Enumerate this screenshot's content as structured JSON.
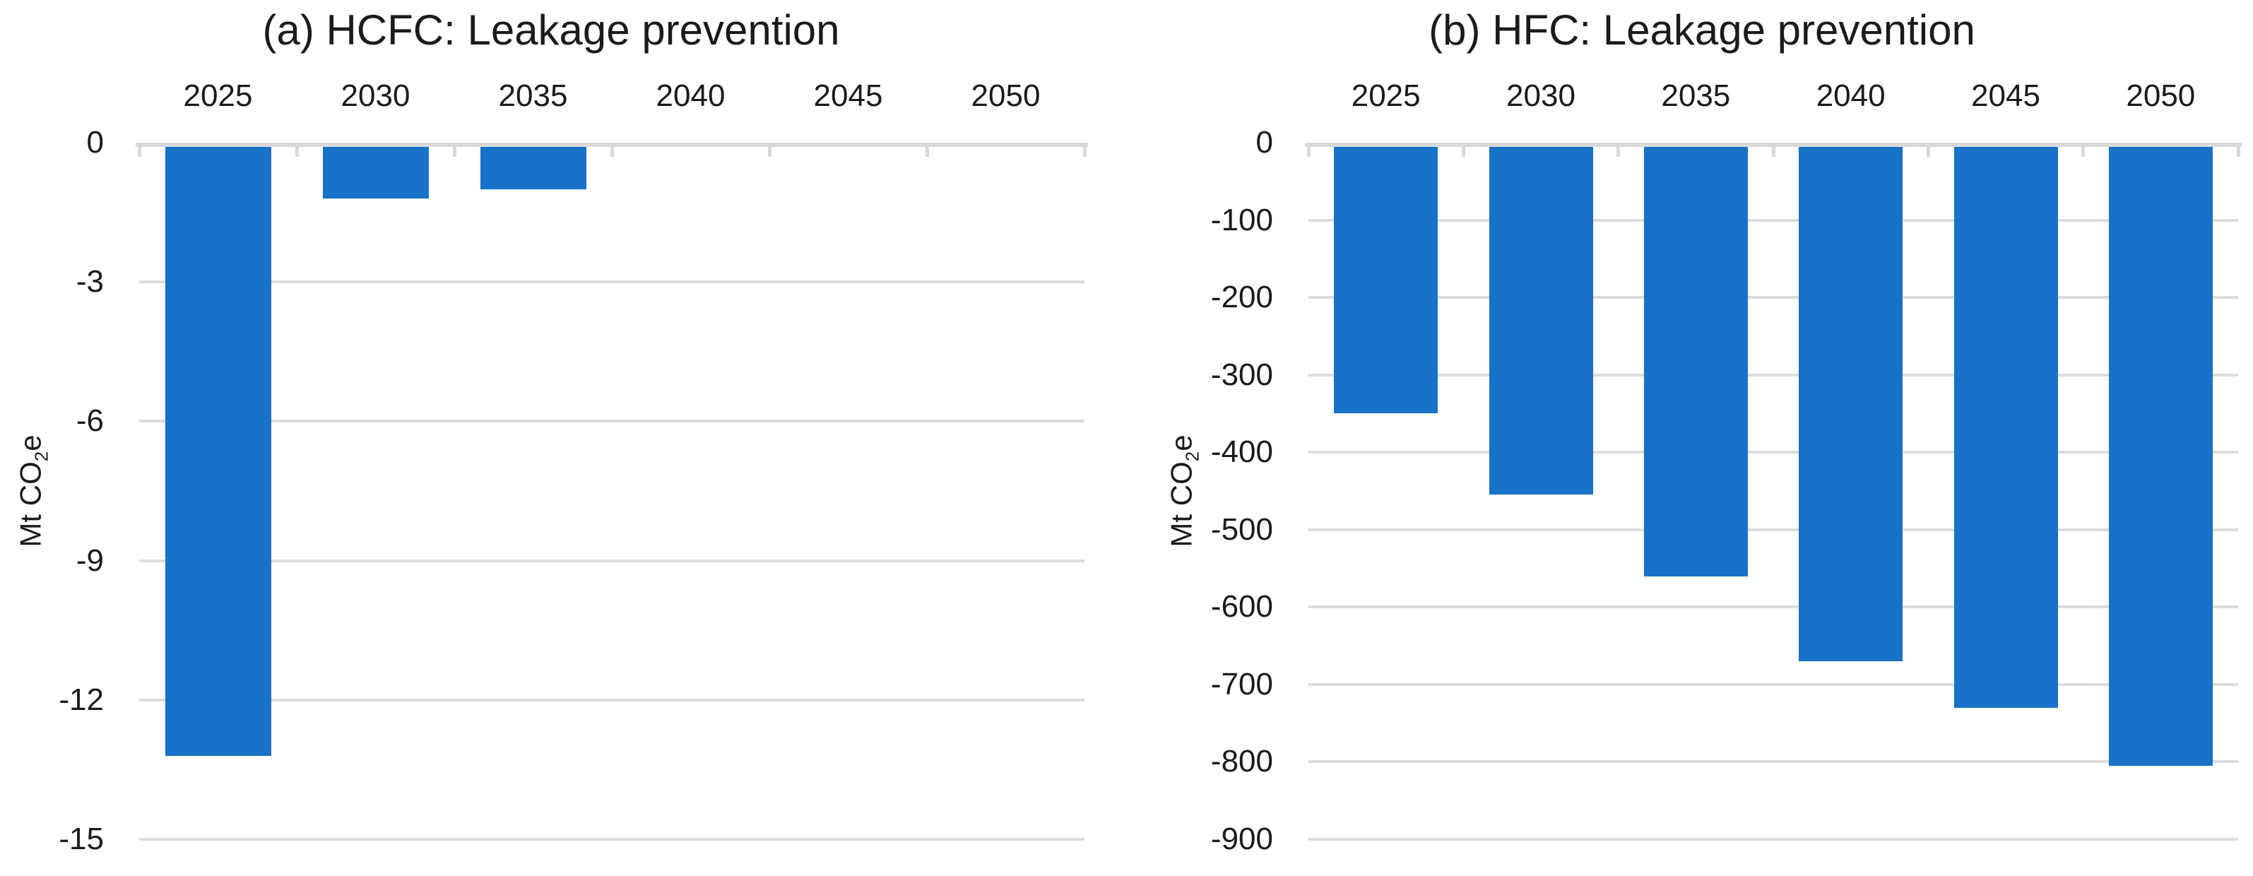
{
  "page": {
    "background": "#FFFFFF"
  },
  "colors": {
    "bar": "#1772C8",
    "gridline": "#DCDCDC",
    "axis_line": "#D9D9D9",
    "tick_mark": "#D9D9D9",
    "text": "#1B1B1B"
  },
  "chart_data": [
    {
      "type": "bar",
      "panel": "a",
      "title": "(a) HCFC: Leakage prevention",
      "ylabel": {
        "prefix": "Mt CO",
        "sub": "2",
        "suffix": "e"
      },
      "xlabel": "",
      "categories": [
        "2025",
        "2030",
        "2035",
        "2040",
        "2045",
        "2050"
      ],
      "values": [
        -13.2,
        -1.2,
        -1.0,
        0,
        0,
        0
      ],
      "y_ticks": [
        0,
        -3,
        -6,
        -9,
        -12,
        -15
      ],
      "ylim": [
        0,
        -15
      ],
      "x_axis_position": "top",
      "grid": true,
      "legend": "none"
    },
    {
      "type": "bar",
      "panel": "b",
      "title": "(b) HFC: Leakage prevention",
      "ylabel": {
        "prefix": "Mt CO",
        "sub": "2",
        "suffix": "e"
      },
      "xlabel": "",
      "categories": [
        "2025",
        "2030",
        "2035",
        "2040",
        "2045",
        "2050"
      ],
      "values": [
        -350,
        -455,
        -560,
        -670,
        -730,
        -805
      ],
      "y_ticks": [
        0,
        -100,
        -200,
        -300,
        -400,
        -500,
        -600,
        -700,
        -800,
        -900
      ],
      "ylim": [
        0,
        -900
      ],
      "x_axis_position": "top",
      "grid": true,
      "legend": "none"
    }
  ]
}
